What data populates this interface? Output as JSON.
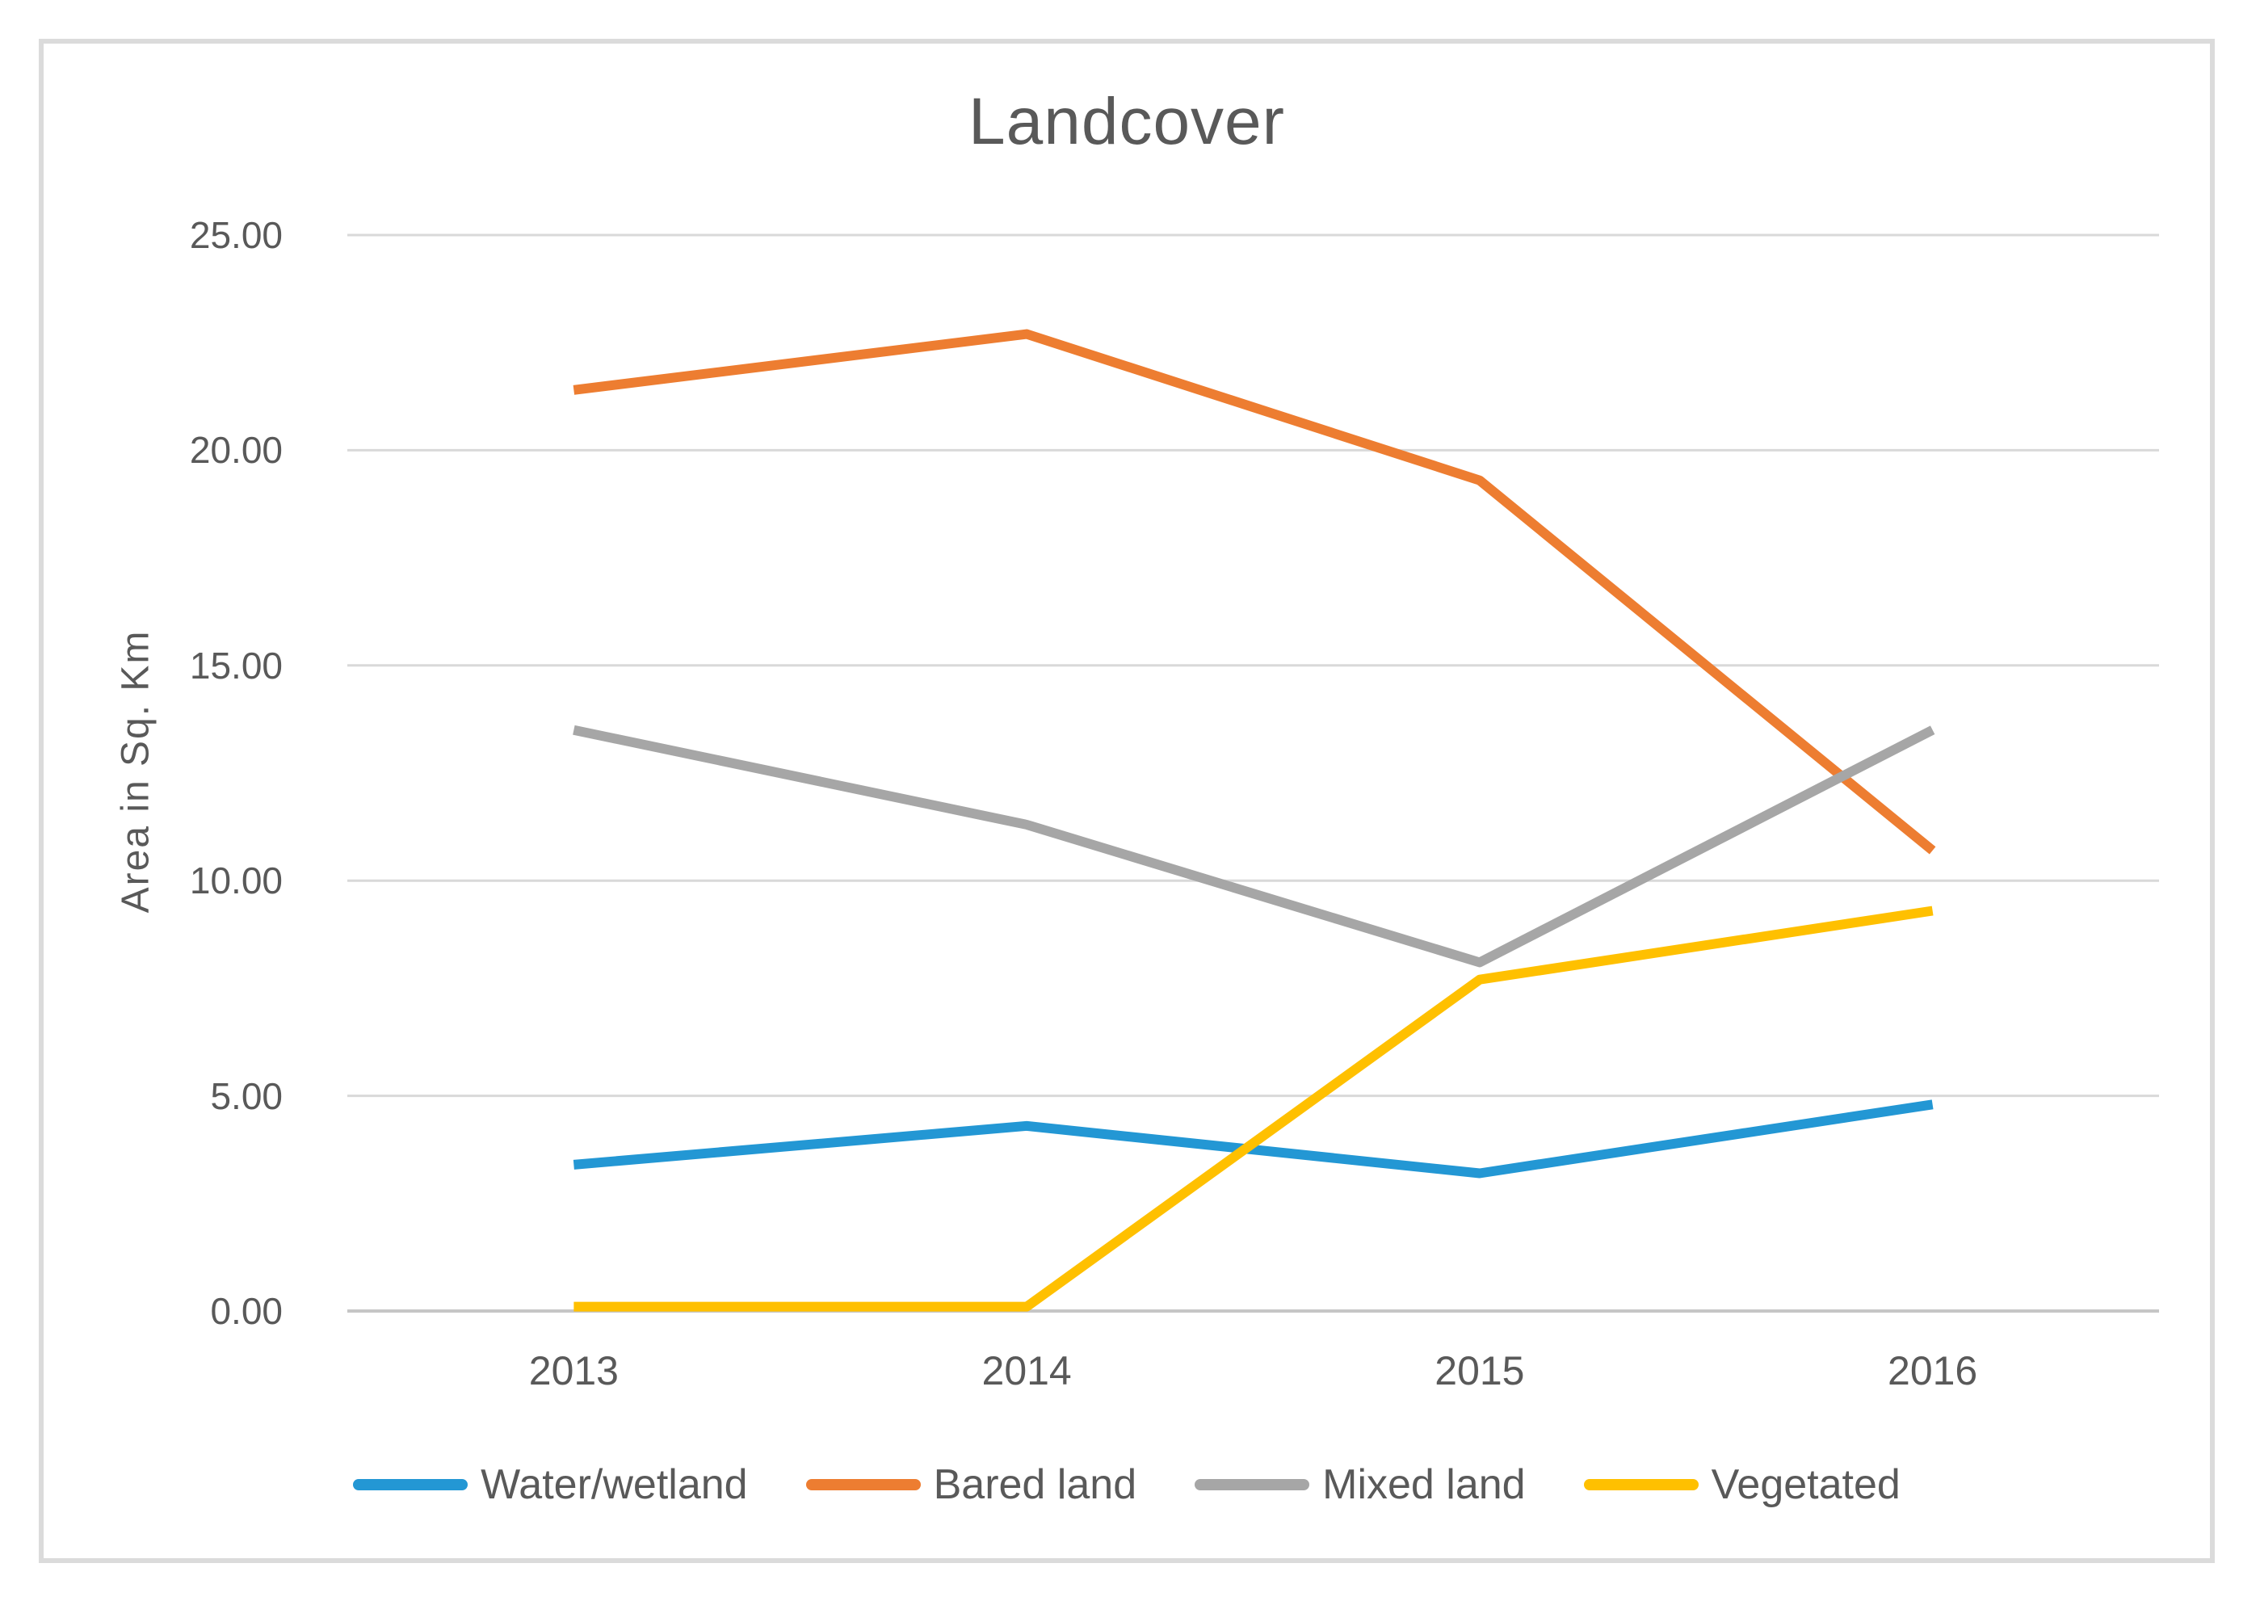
{
  "chart_data": {
    "type": "line",
    "title": "Landcover",
    "xlabel": "",
    "ylabel": "Area in Sq. Km",
    "categories": [
      "2013",
      "2014",
      "2015",
      "2016"
    ],
    "series": [
      {
        "name": "Water/wetland",
        "color": "#2397D4",
        "values": [
          3.4,
          4.3,
          3.2,
          4.8
        ]
      },
      {
        "name": "Bared land",
        "color": "#ED7D31",
        "values": [
          21.4,
          22.7,
          19.3,
          10.7
        ]
      },
      {
        "name": "Mixed land",
        "color": "#A6A6A6",
        "values": [
          13.5,
          11.3,
          8.1,
          13.5
        ]
      },
      {
        "name": "Vegetated",
        "color": "#FFC000",
        "values": [
          0.1,
          0.1,
          7.7,
          9.3
        ]
      }
    ],
    "ylim": [
      0,
      25
    ],
    "ytick_interval": 5,
    "ytick_labels": [
      "0.00",
      "5.00",
      "10.00",
      "15.00",
      "20.00",
      "25.00"
    ],
    "grid": true,
    "gridline_color": "#D9D9D9",
    "axis_line_color": "#C6C6C6",
    "text_color": "#595959",
    "frame_border_color": "#DBDBDB",
    "legend_position": "bottom"
  }
}
